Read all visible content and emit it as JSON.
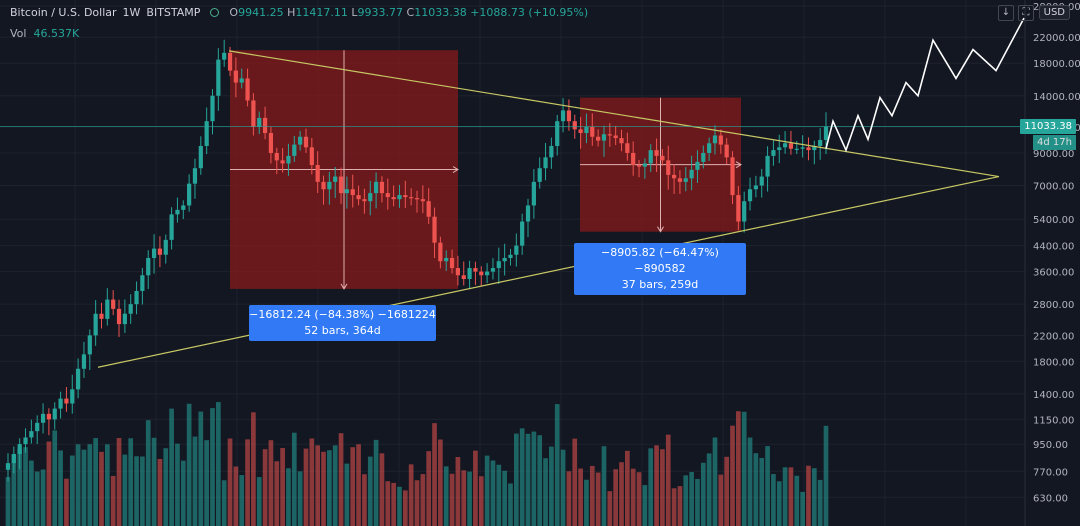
{
  "header": {
    "symbol": "Bitcoin / U.S. Dollar",
    "interval": "1W",
    "exchange": "BITSTAMP",
    "open_label": "O",
    "open": "9941.25",
    "high_label": "H",
    "high": "11417.11",
    "low_label": "L",
    "low": "9933.77",
    "close_label": "C",
    "close": "11033.38",
    "change": "+1088.73 (+10.95%)"
  },
  "volume": {
    "label": "Vol",
    "value": "46.537K"
  },
  "currency_button": "USD",
  "toolbar": {
    "down_icon": "arrow-down-icon",
    "fullscreen_icon": "fullscreen-icon"
  },
  "colors": {
    "background": "#131722",
    "up": "#26a69a",
    "down": "#ef5350",
    "triangle": "#c8c864",
    "measure_box": "#8b1a1a",
    "bubble": "#3179f5",
    "price_line": "#26a69a",
    "projection": "#ffffff"
  },
  "price_tag": {
    "value": "11033.38",
    "countdown": "4d 17h"
  },
  "measurements": [
    {
      "line1": "−16812.24 (−84.38%) −1681224",
      "line2": "52 bars, 364d",
      "from_price": 19900,
      "to_price": 3150
    },
    {
      "line1": "−8905.82 (−64.47%) −890582",
      "line2": "37 bars, 259d",
      "from_price": 13800,
      "to_price": 4900
    }
  ],
  "chart_data": {
    "type": "candlestick",
    "y_scale": "log",
    "y_ticks": [
      "28000.00",
      "22000.00",
      "18000.00",
      "14000.00",
      "11000.00",
      "9000.00",
      "7000.00",
      "5400.00",
      "4400.00",
      "3600.00",
      "2800.00",
      "2200.00",
      "1800.00",
      "1400.00",
      "1150.00",
      "950.00",
      "770.00",
      "630.00"
    ],
    "ylim": [
      580,
      28000
    ],
    "weekly_close_path": [
      820,
      880,
      950,
      1000,
      1050,
      1120,
      1200,
      1150,
      1250,
      1350,
      1300,
      1450,
      1700,
      1900,
      2200,
      2600,
      2500,
      2900,
      2700,
      2400,
      2600,
      2800,
      3100,
      3500,
      4000,
      4300,
      4100,
      4600,
      5600,
      5800,
      6000,
      7100,
      8000,
      9500,
      11500,
      14000,
      18500,
      19500,
      17000,
      15500,
      16000,
      13500,
      11000,
      11800,
      10500,
      9000,
      8500,
      8300,
      8800,
      9600,
      10200,
      9400,
      8200,
      7200,
      6800,
      7200,
      7500,
      6600,
      6800,
      6500,
      6300,
      6200,
      6600,
      7200,
      6600,
      6400,
      6300,
      6500,
      6400,
      6350,
      6300,
      6200,
      5500,
      4500,
      3900,
      4000,
      3700,
      3500,
      3400,
      3700,
      3600,
      3500,
      3600,
      3700,
      3900,
      4000,
      4100,
      4400,
      5300,
      6000,
      7200,
      8000,
      8700,
      9500,
      11500,
      12500,
      11500,
      10800,
      10500,
      11000,
      10200,
      9900,
      10400,
      10300,
      10100,
      9700,
      9000,
      8200,
      8100,
      8300,
      9200,
      8800,
      8500,
      7600,
      7400,
      7200,
      7400,
      7900,
      8400,
      9000,
      9700,
      10300,
      9600,
      8700,
      6500,
      5300,
      6200,
      6800,
      7000,
      7500,
      8800,
      9200,
      9400,
      9700,
      9300,
      9300,
      9400,
      9200,
      9500,
      9950,
      11033
    ],
    "measure_box_1": {
      "from_price": 19900,
      "to_price": 3150,
      "pct": "-84.38%",
      "bars": 52,
      "days": 364
    },
    "measure_box_2": {
      "from_price": 13800,
      "to_price": 4900,
      "pct": "-64.47%",
      "bars": 37,
      "days": 259
    },
    "current_price": 11033.38
  }
}
